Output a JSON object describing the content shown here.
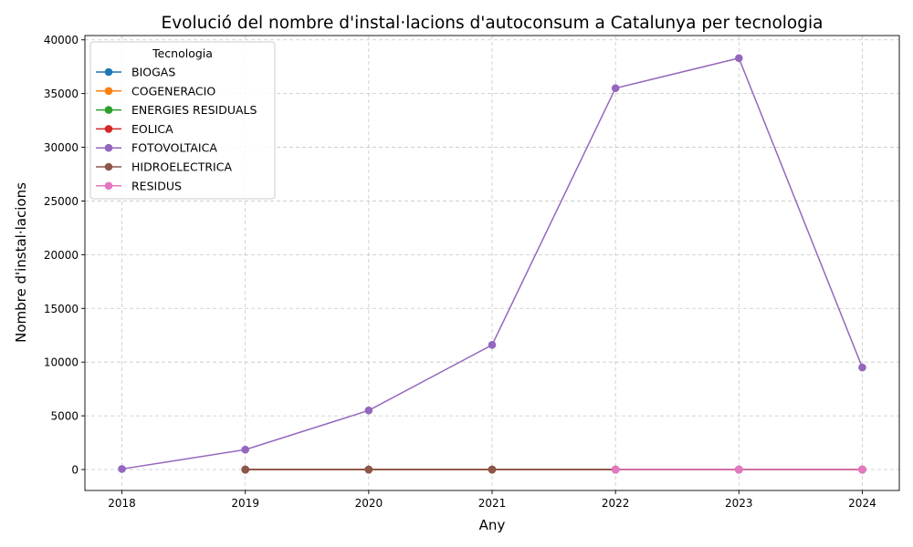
{
  "chart_data": {
    "type": "line",
    "title": "Evolució del nombre d'instal·lacions d'autoconsum a Catalunya per tecnologia",
    "xlabel": "Any",
    "ylabel": "Nombre d'instal·lacions",
    "x": [
      2018,
      2019,
      2020,
      2021,
      2022,
      2023,
      2024
    ],
    "xlim": [
      2017.7,
      2024.3
    ],
    "ylim": [
      -1950,
      40400
    ],
    "yticks": [
      0,
      5000,
      10000,
      15000,
      20000,
      25000,
      30000,
      35000,
      40000
    ],
    "grid": true,
    "legend": {
      "title": "Tecnologia",
      "placement": "top-left"
    },
    "series": [
      {
        "name": "BIOGAS",
        "color": "#1f77b4",
        "values": [
          null,
          0,
          0,
          0,
          0,
          0,
          0
        ]
      },
      {
        "name": "COGENERACIO",
        "color": "#ff7f0e",
        "values": [
          null,
          0,
          0,
          0,
          0,
          0,
          0
        ]
      },
      {
        "name": "ENERGIES RESIDUALS",
        "color": "#2ca02c",
        "values": [
          null,
          0,
          0,
          0,
          0,
          0,
          0
        ]
      },
      {
        "name": "EOLICA",
        "color": "#d62728",
        "values": [
          null,
          0,
          0,
          0,
          0,
          0,
          0
        ]
      },
      {
        "name": "FOTOVOLTAICA",
        "color": "#9467bd",
        "values": [
          50,
          1850,
          5500,
          11600,
          35500,
          38300,
          9500
        ]
      },
      {
        "name": "HIDROELECTRICA",
        "color": "#8c564b",
        "values": [
          null,
          0,
          0,
          0,
          0,
          0,
          0
        ]
      },
      {
        "name": "RESIDUS",
        "color": "#e377c2",
        "values": [
          null,
          null,
          null,
          null,
          0,
          0,
          0
        ]
      }
    ]
  }
}
